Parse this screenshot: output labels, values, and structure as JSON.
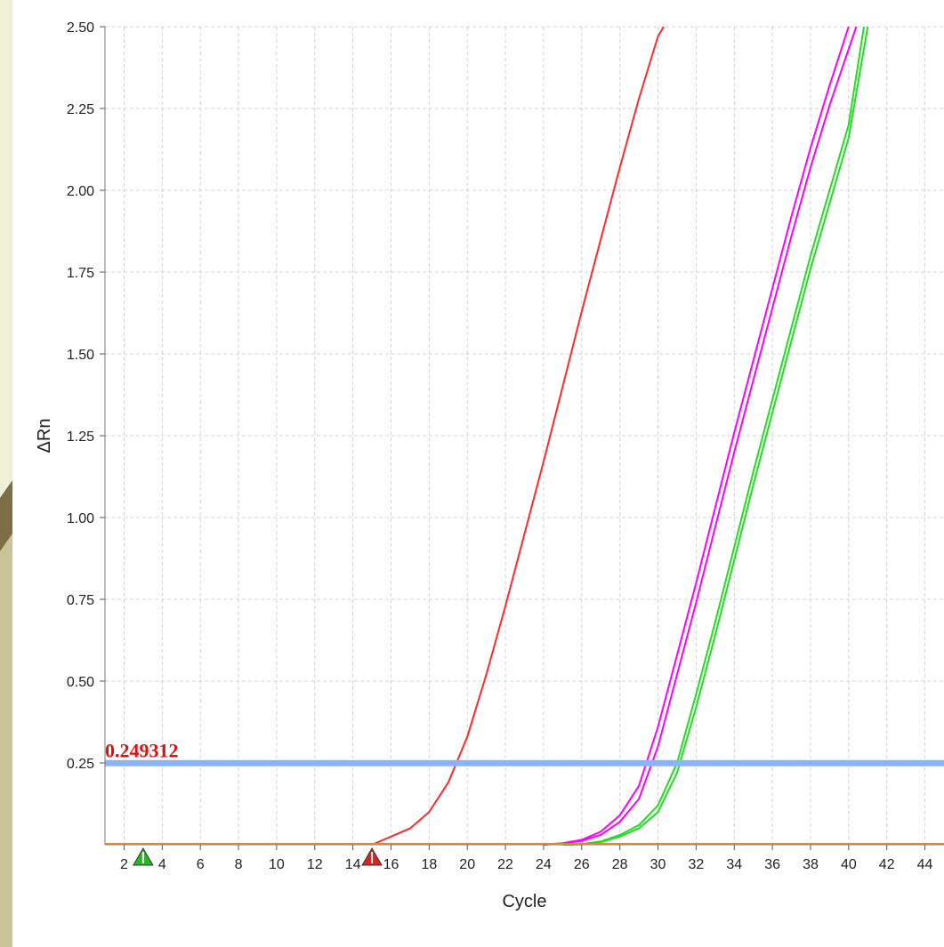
{
  "chart_data": {
    "type": "line",
    "xlabel": "Cycle",
    "ylabel": "ΔRn",
    "xlim": [
      1,
      45
    ],
    "ylim": [
      0,
      2.5
    ],
    "x_ticks": [
      2,
      4,
      6,
      8,
      10,
      12,
      14,
      16,
      18,
      20,
      22,
      24,
      26,
      28,
      30,
      32,
      34,
      36,
      38,
      40,
      42,
      44
    ],
    "y_ticks": [
      0.25,
      0.5,
      0.75,
      1.0,
      1.25,
      1.5,
      1.75,
      2.0,
      2.25,
      2.5
    ],
    "y_tick_labels": [
      "0.25",
      "0.50",
      "0.75",
      "1.00",
      "1.25",
      "1.50",
      "1.75",
      "2.00",
      "2.25",
      "2.50"
    ],
    "grid": true,
    "threshold": {
      "value": 0.249312,
      "label": "0.249312",
      "color": "#8ab4f8"
    },
    "baseline_markers": [
      {
        "cycle": 3,
        "color": "#22bb22"
      },
      {
        "cycle": 15,
        "color": "#dd2222"
      }
    ],
    "series": [
      {
        "color": "#ff2a2a",
        "x": [
          15,
          16,
          17,
          18,
          19,
          20,
          21,
          22,
          23,
          24,
          25,
          26,
          27,
          28,
          29,
          30,
          30.3
        ],
        "y": [
          0.0,
          0.025,
          0.05,
          0.1,
          0.19,
          0.33,
          0.52,
          0.73,
          0.95,
          1.17,
          1.4,
          1.63,
          1.85,
          2.07,
          2.28,
          2.47,
          2.5
        ]
      },
      {
        "color": "#ff00ff",
        "x": [
          24,
          25,
          26,
          27,
          28,
          29,
          30,
          31,
          32,
          33,
          34,
          35,
          36,
          37,
          38,
          39,
          40
        ],
        "y": [
          0.0,
          0.005,
          0.015,
          0.04,
          0.09,
          0.18,
          0.36,
          0.58,
          0.8,
          1.03,
          1.26,
          1.48,
          1.7,
          1.92,
          2.13,
          2.32,
          2.5
        ]
      },
      {
        "color": "#ff00ff",
        "x": [
          24,
          25,
          26,
          27,
          28,
          29,
          30,
          31,
          32,
          33,
          34,
          35,
          36,
          37,
          38,
          39,
          40.4
        ],
        "y": [
          0.0,
          0.004,
          0.012,
          0.03,
          0.07,
          0.14,
          0.3,
          0.52,
          0.74,
          0.97,
          1.2,
          1.42,
          1.64,
          1.86,
          2.07,
          2.26,
          2.5
        ]
      },
      {
        "color": "#22dd22",
        "x": [
          25,
          26,
          27,
          28,
          29,
          30,
          31,
          32,
          33,
          34,
          35,
          36,
          37,
          38,
          39,
          40,
          40.8
        ],
        "y": [
          0.0,
          0.002,
          0.01,
          0.03,
          0.06,
          0.12,
          0.25,
          0.46,
          0.68,
          0.91,
          1.14,
          1.36,
          1.58,
          1.8,
          2.0,
          2.2,
          2.5
        ]
      },
      {
        "color": "#22dd22",
        "x": [
          25,
          26,
          27,
          28,
          29,
          30,
          31,
          32,
          33,
          34,
          35,
          36,
          37,
          38,
          39,
          40,
          41
        ],
        "y": [
          0.0,
          0.001,
          0.008,
          0.025,
          0.05,
          0.1,
          0.22,
          0.42,
          0.64,
          0.87,
          1.1,
          1.32,
          1.54,
          1.76,
          1.96,
          2.16,
          2.5
        ]
      }
    ]
  }
}
